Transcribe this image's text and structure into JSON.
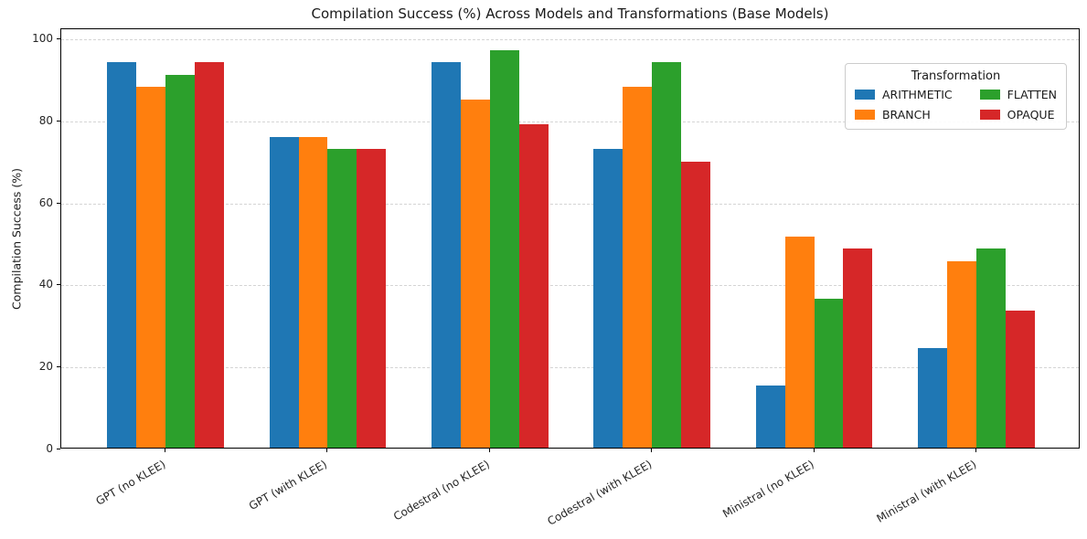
{
  "figure": {
    "title": "Compilation Success (%) Across Models and Transformations (Base Models)"
  },
  "legend": {
    "title": "Transformation"
  },
  "chart_data": {
    "type": "bar",
    "title": "Compilation Success (%) Across Models and Transformations (Base Models)",
    "xlabel": "",
    "ylabel": "Compilation Success (%)",
    "categories": [
      "GPT (no KLEE)",
      "GPT (with KLEE)",
      "Codestral (no KLEE)",
      "Codestral (with KLEE)",
      "Ministral (no KLEE)",
      "Ministral (with KLEE)"
    ],
    "series": [
      {
        "name": "ARITHMETIC",
        "color": "#1f77b4",
        "values": [
          93.94,
          75.76,
          93.94,
          72.73,
          15.15,
          24.24
        ]
      },
      {
        "name": "BRANCH",
        "color": "#ff7f0e",
        "values": [
          87.88,
          75.76,
          84.85,
          87.88,
          51.52,
          45.45
        ]
      },
      {
        "name": "FLATTEN",
        "color": "#2ca02c",
        "values": [
          90.91,
          72.73,
          96.97,
          93.94,
          36.36,
          48.48
        ]
      },
      {
        "name": "OPAQUE",
        "color": "#d62728",
        "values": [
          93.94,
          72.73,
          78.79,
          69.7,
          48.48,
          33.33
        ]
      }
    ],
    "yticks": [
      0,
      20,
      40,
      60,
      80,
      100
    ],
    "ylim": [
      0,
      102.45
    ],
    "grid": "horizontal-dashed",
    "legend_title": "Transformation",
    "legend_position": "upper right",
    "legend_columns": 2,
    "xtick_rotation_deg": 30
  }
}
